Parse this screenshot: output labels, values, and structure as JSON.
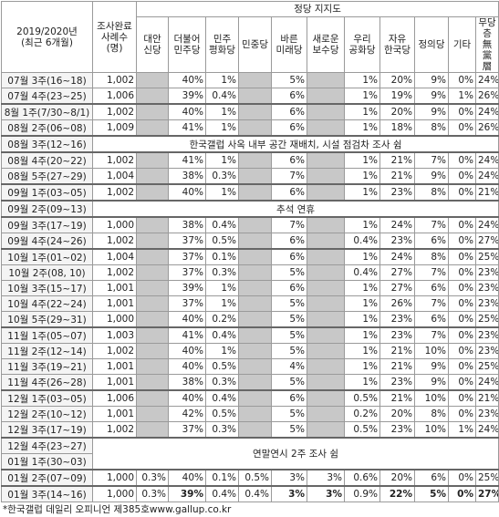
{
  "header": {
    "period": "2019/2020년\n(최근 6개월)",
    "sample": "조사완료\n사례수\n(명)",
    "group": "정당 지지도",
    "parties": [
      "대안\n신당",
      "더불어\n민주당",
      "민주\n평화당",
      "민중당",
      "바른\n미래당",
      "새로운\n보수당",
      "우리\n공화당",
      "자유\n한국당",
      "정의당",
      "기타",
      "무당층\n無黨層"
    ]
  },
  "table": {
    "groups": [
      {
        "rows": [
          {
            "period": "07월 3주(16~18)",
            "cells": [
              "1,002",
              null,
              "40%",
              "1%",
              null,
              "5%",
              null,
              "1%",
              "20%",
              "9%",
              "0%",
              "24%"
            ]
          },
          {
            "period": "07월 4주(23~25)",
            "cells": [
              "1,006",
              null,
              "39%",
              "0.4%",
              null,
              "6%",
              null,
              "1%",
              "19%",
              "9%",
              "1%",
              "26%"
            ]
          }
        ]
      },
      {
        "rows": [
          {
            "period": "8월 1주(7/30~8/1)",
            "cells": [
              "1,002",
              null,
              "40%",
              "1%",
              null,
              "6%",
              null,
              "1%",
              "20%",
              "9%",
              "0%",
              "24%"
            ]
          },
          {
            "period": "08월 2주(06~08)",
            "cells": [
              "1,009",
              null,
              "41%",
              "1%",
              null,
              "6%",
              null,
              "1%",
              "18%",
              "8%",
              "0%",
              "26%"
            ]
          }
        ]
      },
      {
        "rows": [
          {
            "period": "08월 3주(12~16)"
          }
        ],
        "note": "한국갤럽 사옥 내부 공간 재배치, 시설 점검차 조사 쉼"
      },
      {
        "rows": [
          {
            "period": "08월 4주(20~22)",
            "cells": [
              "1,002",
              null,
              "41%",
              "1%",
              null,
              "6%",
              null,
              "1%",
              "21%",
              "7%",
              "0%",
              "24%"
            ]
          },
          {
            "period": "08월 5주(27~29)",
            "cells": [
              "1,004",
              null,
              "38%",
              "0.3%",
              null,
              "7%",
              null,
              "1%",
              "21%",
              "9%",
              "0%",
              "24%"
            ]
          }
        ]
      },
      {
        "rows": [
          {
            "period": "09월 1주(03~05)",
            "cells": [
              "1,002",
              null,
              "40%",
              "1%",
              null,
              "6%",
              null,
              "1%",
              "23%",
              "8%",
              "0%",
              "21%"
            ]
          }
        ]
      },
      {
        "rows": [
          {
            "period": "09월 2주(09~13)"
          }
        ],
        "note": "추석 연휴"
      },
      {
        "rows": [
          {
            "period": "09월 3주(17~19)",
            "cells": [
              "1,000",
              null,
              "38%",
              "0.4%",
              null,
              "7%",
              null,
              "1%",
              "24%",
              "7%",
              "0%",
              "24%"
            ]
          },
          {
            "period": "09월 4주(24~26)",
            "cells": [
              "1,002",
              null,
              "37%",
              "0.5%",
              null,
              "6%",
              null,
              "0.4%",
              "23%",
              "6%",
              "0%",
              "27%"
            ]
          }
        ]
      },
      {
        "rows": [
          {
            "period": "10월 1주(01~02)",
            "cells": [
              "1,004",
              null,
              "37%",
              "0.1%",
              null,
              "6%",
              null,
              "1%",
              "24%",
              "8%",
              "0%",
              "25%"
            ]
          },
          {
            "period": "10월 2주(08, 10)",
            "cells": [
              "1,002",
              null,
              "37%",
              "0.3%",
              null,
              "5%",
              null,
              "0.4%",
              "27%",
              "7%",
              "0%",
              "23%"
            ]
          },
          {
            "period": "10월 3주(15~17)",
            "cells": [
              "1,001",
              null,
              "39%",
              "1%",
              null,
              "6%",
              null,
              "1%",
              "27%",
              "6%",
              "0%",
              "23%"
            ]
          },
          {
            "period": "10월 4주(22~24)",
            "cells": [
              "1,001",
              null,
              "37%",
              "1%",
              null,
              "5%",
              null,
              "1%",
              "26%",
              "7%",
              "0%",
              "23%"
            ]
          },
          {
            "period": "10월 5주(29~31)",
            "cells": [
              "1,000",
              null,
              "40%",
              "0.2%",
              null,
              "5%",
              null,
              "1%",
              "23%",
              "6%",
              "0%",
              "25%"
            ]
          }
        ]
      },
      {
        "rows": [
          {
            "period": "11월 1주(05~07)",
            "cells": [
              "1,003",
              null,
              "41%",
              "0.4%",
              null,
              "5%",
              null,
              "1%",
              "23%",
              "7%",
              "0%",
              "23%"
            ]
          },
          {
            "period": "11월 2주(12~14)",
            "cells": [
              "1,002",
              null,
              "40%",
              "1%",
              null,
              "5%",
              null,
              "1%",
              "21%",
              "10%",
              "0%",
              "23%"
            ]
          },
          {
            "period": "11월 3주(19~21)",
            "cells": [
              "1,001",
              null,
              "40%",
              "0.5%",
              null,
              "4%",
              null,
              "1%",
              "21%",
              "9%",
              "0%",
              "25%"
            ]
          },
          {
            "period": "11월 4주(26~28)",
            "cells": [
              "1,001",
              null,
              "38%",
              "0.3%",
              null,
              "5%",
              null,
              "1%",
              "23%",
              "9%",
              "0%",
              "24%"
            ]
          }
        ]
      },
      {
        "rows": [
          {
            "period": "12월 1주(03~05)",
            "cells": [
              "1,006",
              null,
              "40%",
              "0.4%",
              null,
              "6%",
              null,
              "0.5%",
              "21%",
              "10%",
              "0%",
              "21%"
            ]
          },
          {
            "period": "12월 2주(10~12)",
            "cells": [
              "1,001",
              null,
              "42%",
              "0.5%",
              null,
              "5%",
              null,
              "0.2%",
              "20%",
              "8%",
              "0%",
              "23%"
            ]
          },
          {
            "period": "12월 3주(17~19)",
            "cells": [
              "1,002",
              null,
              "37%",
              "0.3%",
              null,
              "5%",
              null,
              "0.5%",
              "23%",
              "10%",
              "1%",
              "24%"
            ]
          }
        ]
      },
      {
        "rows": [
          {
            "period": "12월 4주(23~27)"
          },
          {
            "period": "01월 1주(30~03)"
          }
        ],
        "note": "연말연시 2주 조사 쉼"
      },
      {
        "rows": [
          {
            "period": "01월 2주(07~09)",
            "cells": [
              "1,000",
              "0.3%",
              "40%",
              "0.1%",
              "0.5%",
              "3%",
              "3%",
              "0.6%",
              "20%",
              "6%",
              "0%",
              "25%"
            ]
          }
        ]
      },
      {
        "rows": [
          {
            "period": "01월 3주(14~16)",
            "cells": [
              "1,000",
              "0.3%",
              "39%",
              "0.4%",
              "0.4%",
              "3%",
              "3%",
              "0.9%",
              "22%",
              "5%",
              "0%",
              "27%"
            ]
          }
        ]
      }
    ]
  },
  "footer": {
    "source": "*한국갤럽 데일리 오피니언 제385호",
    "url": "www.gallup.co.kr"
  }
}
